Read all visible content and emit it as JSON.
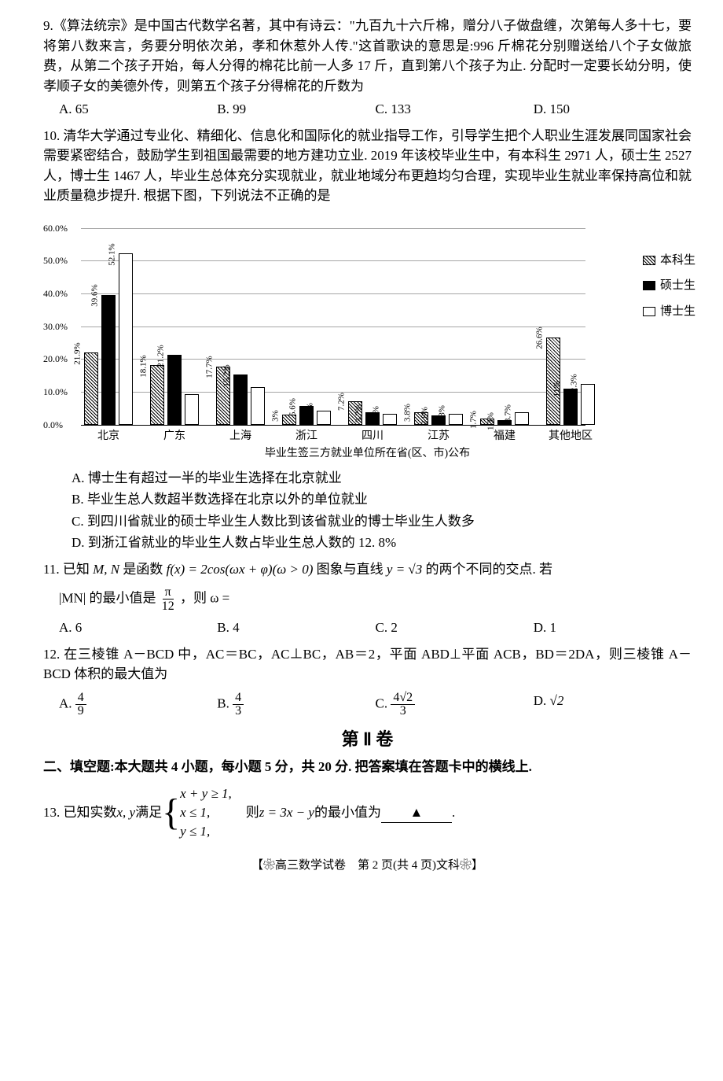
{
  "q9": {
    "text": "9.《算法统宗》是中国古代数学名著，其中有诗云：\"九百九十六斤棉，赠分八子做盘缠，次第每人多十七，要将第八数来言，务要分明依次弟，孝和休惹外人传.\"这首歌诀的意思是:996 斤棉花分别赠送给八个子女做旅费，从第二个孩子开始，每人分得的棉花比前一人多 17 斤，直到第八个孩子为止. 分配时一定要长幼分明，使孝顺子女的美德外传，则第五个孩子分得棉花的斤数为",
    "opts": {
      "a": "A. 65",
      "b": "B. 99",
      "c": "C. 133",
      "d": "D. 150"
    }
  },
  "q10": {
    "text": "10. 清华大学通过专业化、精细化、信息化和国际化的就业指导工作，引导学生把个人职业生涯发展同国家社会需要紧密结合，鼓励学生到祖国最需要的地方建功立业. 2019 年该校毕业生中，有本科生 2971 人，硕士生 2527 人，博士生 1467 人，毕业生总体充分实现就业，就业地域分布更趋均匀合理，实现毕业生就业率保持高位和就业质量稳步提升. 根据下图，下列说法不正确的是",
    "yticks": [
      "0.0%",
      "10.0%",
      "20.0%",
      "30.0%",
      "40.0%",
      "50.0%",
      "60.0%"
    ],
    "legend": {
      "a": "本科生",
      "b": "硕士生",
      "c": "博士生"
    },
    "cats": [
      "北京",
      "广东",
      "上海",
      "浙江",
      "四川",
      "江苏",
      "福建",
      "其他地区"
    ],
    "data": [
      [
        21.9,
        39.6,
        52.1
      ],
      [
        18.1,
        21.2,
        9.3
      ],
      [
        17.7,
        15.2,
        11.4
      ],
      [
        3.0,
        5.6,
        4.2
      ],
      [
        7.2,
        3.7,
        3.2
      ],
      [
        3.8,
        2.8,
        3.3
      ],
      [
        1.7,
        1.3,
        3.7
      ],
      [
        26.6,
        11.0,
        12.3
      ]
    ],
    "chart_title": "毕业生签三方就业单位所在省(区、市)公布",
    "opts": {
      "a": "A. 博士生有超过一半的毕业生选择在北京就业",
      "b": "B. 毕业生总人数超半数选择在北京以外的单位就业",
      "c": "C. 到四川省就业的硕士毕业生人数比到该省就业的博士毕业生人数多",
      "d": "D. 到浙江省就业的毕业生人数占毕业生总人数的 12. 8%"
    }
  },
  "q11": {
    "text1": "11. 已知 ",
    "mn": "M, N",
    "text2": " 是函数 ",
    "fx": "f(x) = 2cos(ωx + φ)(ω > 0)",
    "text3": " 图象与直线 ",
    "yeq": "y = √3",
    "text4": " 的两个不同的交点. 若",
    "text5": "|MN| 的最小值是",
    "frac_n": "π",
    "frac_d": "12",
    "text6": "，则 ω =",
    "opts": {
      "a": "A. 6",
      "b": "B. 4",
      "c": "C. 2",
      "d": "D. 1"
    }
  },
  "q12": {
    "text": "12. 在三棱锥 A－BCD 中，AC＝BC，AC⊥BC，AB＝2，平面 ABD⊥平面 ACB，BD＝2DA，则三棱锥 A－BCD 体积的最大值为",
    "opts": {
      "a_n": "4",
      "a_d": "9",
      "b_n": "4",
      "b_d": "3",
      "c_n": "4√2",
      "c_d": "3",
      "d": "√2"
    }
  },
  "sec2": "第 Ⅱ 卷",
  "fill_title": "二、填空题:本大题共 4 小题，每小题 5 分，共 20 分. 把答案填在答题卡中的横线上.",
  "q13": {
    "text1": "13. 已知实数 ",
    "xy": "x, y",
    "text2": " 满足",
    "c1": "x + y ≥ 1,",
    "c2": "x ≤ 1,",
    "c3": "y ≤ 1,",
    "text3": "则 ",
    "z": "z = 3x − y",
    "text4": " 的最小值为 ",
    "blank": "▲",
    "dot": "."
  },
  "footer": "【❀高三数学试卷　第 2 页(共 4 页)文科❀】"
}
